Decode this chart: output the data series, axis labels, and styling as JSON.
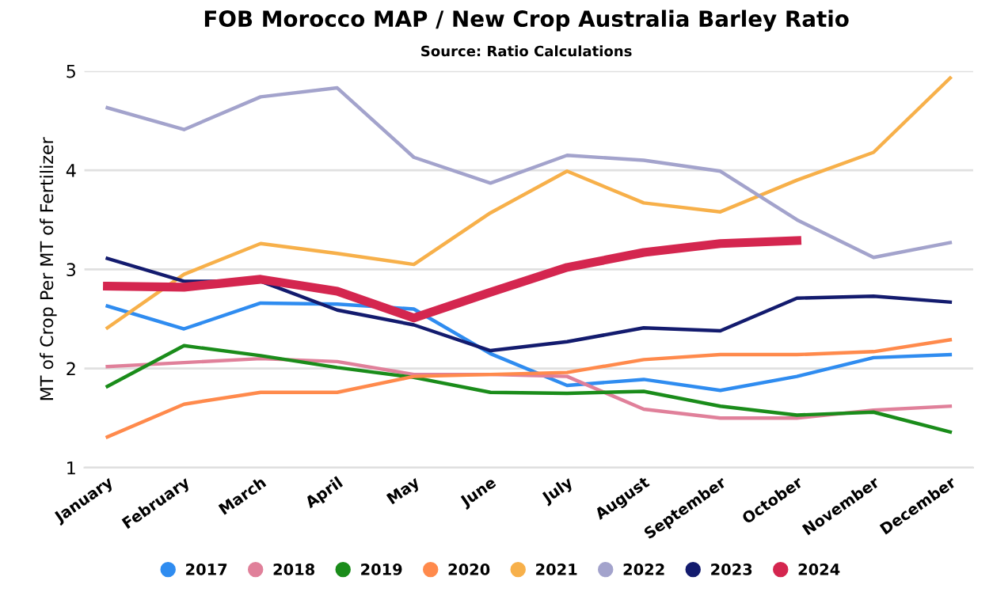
{
  "chart_data": {
    "type": "line",
    "title": "FOB Morocco MAP / New Crop Australia Barley Ratio",
    "subtitle": "Source: Ratio Calculations",
    "ylabel": "MT of Crop Per MT of Fertilizer",
    "categories": [
      "January",
      "February",
      "March",
      "April",
      "May",
      "June",
      "July",
      "August",
      "September",
      "October",
      "November",
      "December"
    ],
    "series": [
      {
        "name": "2017",
        "color": "#2f8cf0",
        "values": [
          2.63,
          2.4,
          2.66,
          2.65,
          2.6,
          2.15,
          1.83,
          1.89,
          1.78,
          1.92,
          2.11,
          2.14
        ]
      },
      {
        "name": "2018",
        "color": "#e0809a",
        "values": [
          2.02,
          2.06,
          2.1,
          2.07,
          1.94,
          1.94,
          1.92,
          1.59,
          1.5,
          1.5,
          1.58,
          1.62
        ]
      },
      {
        "name": "2019",
        "color": "#1a8c1a",
        "values": [
          1.82,
          2.23,
          2.13,
          2.01,
          1.91,
          1.76,
          1.75,
          1.77,
          1.62,
          1.53,
          1.56,
          1.36
        ]
      },
      {
        "name": "2020",
        "color": "#ff8a4c",
        "values": [
          1.31,
          1.64,
          1.76,
          1.76,
          1.92,
          1.94,
          1.96,
          2.09,
          2.14,
          2.14,
          2.17,
          2.29
        ]
      },
      {
        "name": "2021",
        "color": "#f7b04a",
        "values": [
          2.41,
          2.95,
          3.26,
          3.16,
          3.05,
          3.57,
          3.99,
          3.67,
          3.58,
          3.9,
          4.18,
          4.93
        ]
      },
      {
        "name": "2022",
        "color": "#a3a3cc",
        "values": [
          4.63,
          4.41,
          4.74,
          4.83,
          4.13,
          3.87,
          4.15,
          4.1,
          3.99,
          3.5,
          3.12,
          3.27
        ]
      },
      {
        "name": "2023",
        "color": "#131b6e",
        "values": [
          3.11,
          2.88,
          2.88,
          2.59,
          2.44,
          2.18,
          2.27,
          2.41,
          2.38,
          2.71,
          2.73,
          2.67
        ]
      },
      {
        "name": "2024",
        "color": "#d4264f",
        "values": [
          2.83,
          2.82,
          2.9,
          2.78,
          2.51,
          2.77,
          3.02,
          3.17,
          3.26,
          3.29,
          null,
          null
        ]
      }
    ],
    "ylim": [
      1,
      5
    ],
    "yticks": [
      1,
      2,
      3,
      4,
      5
    ],
    "grid": "y",
    "legend": "bottom",
    "marker": "none",
    "line_style": "solid"
  }
}
